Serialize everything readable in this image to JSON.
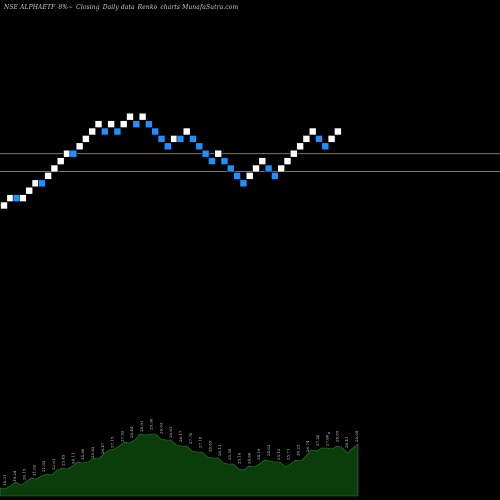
{
  "header": {
    "symbol": "NSE ALPHAETF",
    "box_size": "8%~",
    "closing": "Closing",
    "period": "Daily data",
    "chart_kind": "Renko",
    "credit": "charts MunafaSutra.com"
  },
  "colors": {
    "background": "#000000",
    "up_brick": "#ffffff",
    "down_brick": "#1e90ff",
    "reference_line": "#b8860b",
    "volume_fill": "#0b3d0b",
    "volume_stroke": "#2e7d32",
    "volume_label": "#cccccc"
  },
  "chart_data": {
    "type": "renko",
    "bricks": [
      {
        "dir": "up",
        "level": 0
      },
      {
        "dir": "up",
        "level": 1
      },
      {
        "dir": "down",
        "level": 1
      },
      {
        "dir": "up",
        "level": 1
      },
      {
        "dir": "up",
        "level": 2
      },
      {
        "dir": "up",
        "level": 3
      },
      {
        "dir": "down",
        "level": 3
      },
      {
        "dir": "up",
        "level": 4
      },
      {
        "dir": "up",
        "level": 5
      },
      {
        "dir": "up",
        "level": 6
      },
      {
        "dir": "up",
        "level": 7
      },
      {
        "dir": "down",
        "level": 7
      },
      {
        "dir": "up",
        "level": 8
      },
      {
        "dir": "up",
        "level": 9
      },
      {
        "dir": "up",
        "level": 10
      },
      {
        "dir": "up",
        "level": 11
      },
      {
        "dir": "down",
        "level": 10
      },
      {
        "dir": "up",
        "level": 11
      },
      {
        "dir": "down",
        "level": 10
      },
      {
        "dir": "up",
        "level": 11
      },
      {
        "dir": "up",
        "level": 12
      },
      {
        "dir": "down",
        "level": 11
      },
      {
        "dir": "up",
        "level": 12
      },
      {
        "dir": "down",
        "level": 11
      },
      {
        "dir": "down",
        "level": 10
      },
      {
        "dir": "down",
        "level": 9
      },
      {
        "dir": "down",
        "level": 8
      },
      {
        "dir": "up",
        "level": 9
      },
      {
        "dir": "down",
        "level": 9
      },
      {
        "dir": "up",
        "level": 10
      },
      {
        "dir": "down",
        "level": 9
      },
      {
        "dir": "down",
        "level": 8
      },
      {
        "dir": "down",
        "level": 7
      },
      {
        "dir": "down",
        "level": 6
      },
      {
        "dir": "up",
        "level": 7
      },
      {
        "dir": "down",
        "level": 6
      },
      {
        "dir": "down",
        "level": 5
      },
      {
        "dir": "down",
        "level": 4
      },
      {
        "dir": "down",
        "level": 3
      },
      {
        "dir": "up",
        "level": 4
      },
      {
        "dir": "up",
        "level": 5
      },
      {
        "dir": "up",
        "level": 6
      },
      {
        "dir": "down",
        "level": 5
      },
      {
        "dir": "down",
        "level": 4
      },
      {
        "dir": "up",
        "level": 5
      },
      {
        "dir": "up",
        "level": 6
      },
      {
        "dir": "up",
        "level": 7
      },
      {
        "dir": "up",
        "level": 8
      },
      {
        "dir": "up",
        "level": 9
      },
      {
        "dir": "up",
        "level": 10
      },
      {
        "dir": "down",
        "level": 9
      },
      {
        "dir": "down",
        "level": 8
      },
      {
        "dir": "up",
        "level": 9
      },
      {
        "dir": "up",
        "level": 10
      }
    ],
    "reference_levels": [
      7,
      4.6
    ],
    "volume_profile": [
      3,
      4,
      5,
      6,
      6,
      7,
      8,
      9,
      10,
      10,
      11,
      13,
      13,
      14,
      15,
      16,
      17,
      17,
      18,
      19,
      21,
      22,
      24,
      25,
      26,
      27,
      28,
      30,
      31,
      31,
      30,
      29,
      28,
      27,
      26,
      25,
      24,
      23,
      22,
      21,
      20,
      19,
      18,
      17,
      16,
      15,
      14,
      13,
      14,
      15,
      16,
      17,
      18,
      17,
      16,
      15,
      16,
      17,
      18,
      20,
      22,
      23,
      24,
      23,
      24,
      25,
      23,
      22,
      24,
      25
    ],
    "volume_labels": [
      "18.31",
      "19.24",
      "20.15",
      "21.02",
      "21.93",
      "22.61",
      "23.45",
      "24.11",
      "24.96",
      "25.82",
      "26.47",
      "27.15",
      "27.92",
      "28.44",
      "28.91",
      "29.36",
      "29.03",
      "28.61",
      "28.17",
      "27.70",
      "27.18",
      "26.65",
      "26.11",
      "25.59",
      "25.10",
      "24.66",
      "24.19",
      "24.63",
      "25.12",
      "25.71",
      "26.23",
      "26.74",
      "27.20",
      "27.66",
      "28.05",
      "28.41",
      "28.09"
    ]
  }
}
